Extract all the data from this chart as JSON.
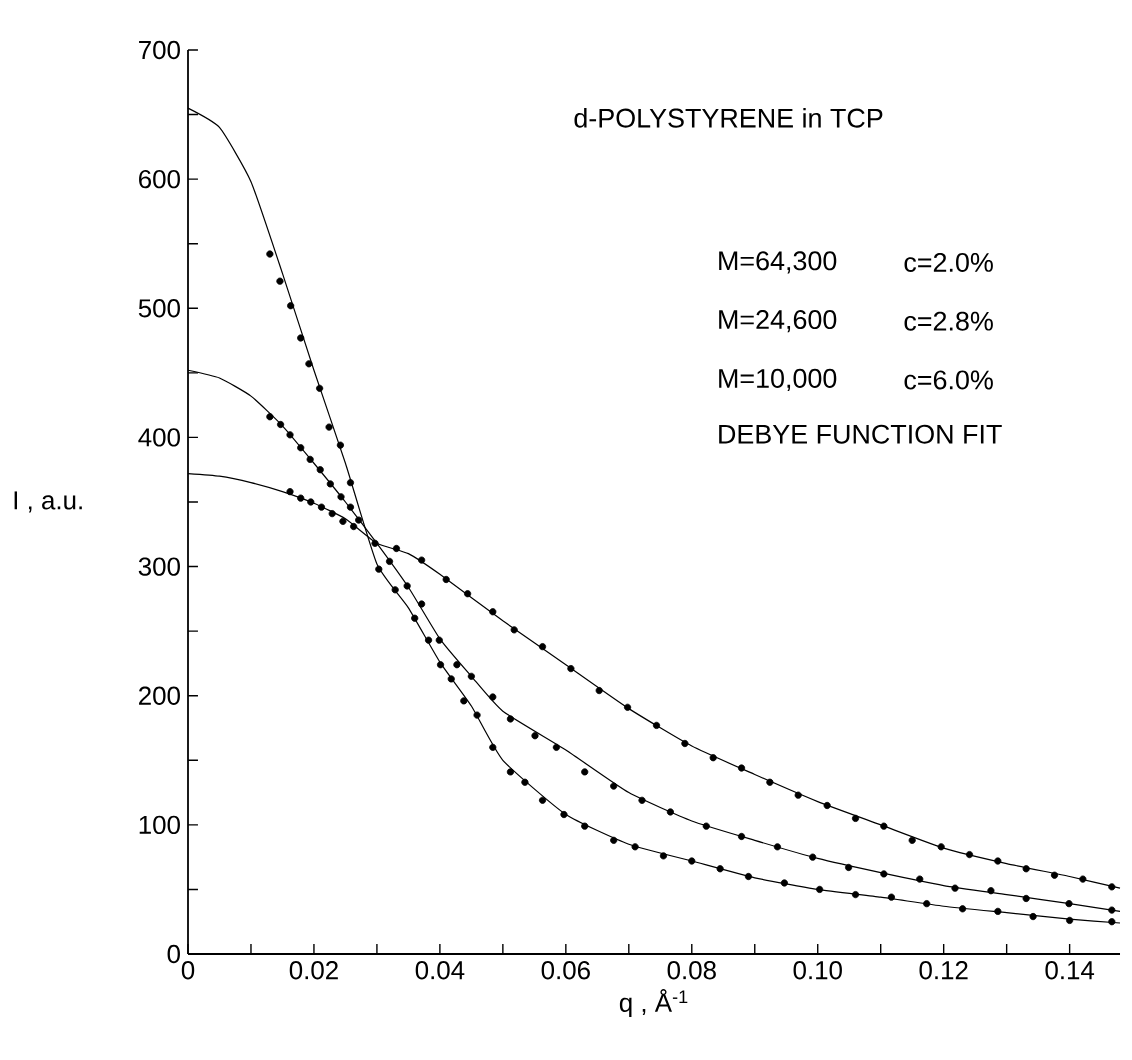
{
  "chart_data": {
    "type": "scatter",
    "title": "d-POLYSTYRENE in TCP",
    "xlabel": "q , Å$^{-1}$",
    "ylabel": "I , a.u.",
    "annotations": [
      "M=64,300",
      "c=2.0%",
      "M=24,600",
      "c=2.8%",
      "M=10,000",
      "c=6.0%",
      "DEBYE FUNCTION FIT"
    ],
    "xlim": [
      0,
      0.148
    ],
    "ylim": [
      0,
      700
    ],
    "xticks": [
      0,
      {
        "value": 0.01,
        "label": null
      },
      0.02,
      {
        "value": 0.03,
        "label": null
      },
      0.04,
      {
        "value": 0.05,
        "label": null
      },
      0.06,
      {
        "value": 0.07,
        "label": null
      },
      0.08,
      {
        "value": 0.09,
        "label": null
      },
      {
        "value": 0.1,
        "label": "0.10"
      },
      {
        "value": 0.11,
        "label": null
      },
      0.12,
      {
        "value": 0.13,
        "label": null
      },
      0.14
    ],
    "yticks": [
      0,
      {
        "value": 50,
        "label": null
      },
      100,
      {
        "value": 150,
        "label": null
      },
      200,
      {
        "value": 250,
        "label": null
      },
      300,
      {
        "value": 350,
        "label": null
      },
      400,
      {
        "value": 450,
        "label": null
      },
      500,
      {
        "value": 550,
        "label": null
      },
      600,
      {
        "value": 650,
        "label": null
      },
      700
    ],
    "marker": "circle",
    "series": [
      {
        "color": "#000000",
        "x": [
          0.013,
          0.0146,
          0.0163,
          0.0179,
          0.0192,
          0.0209,
          0.0224,
          0.0242,
          0.0258,
          0.0272,
          0.0303,
          0.0329,
          0.036,
          0.0382,
          0.0401,
          0.0418,
          0.0438,
          0.0459,
          0.0484,
          0.0512,
          0.0535,
          0.0563,
          0.0597,
          0.063,
          0.0676,
          0.071,
          0.0755,
          0.08,
          0.0845,
          0.089,
          0.0947,
          0.1003,
          0.106,
          0.1117,
          0.1173,
          0.123,
          0.1286,
          0.1342,
          0.14,
          0.1467
        ],
        "values": [
          542,
          521,
          502,
          477,
          457,
          438,
          408,
          394,
          365,
          null,
          298,
          282,
          260,
          243,
          224,
          213,
          196,
          185,
          160,
          141,
          133,
          119,
          108,
          99,
          88,
          83,
          76,
          72,
          66,
          60,
          55,
          50,
          46,
          44,
          39,
          35,
          33,
          29,
          26,
          25
        ]
      },
      {
        "color": "#000000",
        "x": [
          0.013,
          0.0147,
          0.0162,
          0.0179,
          0.0194,
          0.021,
          0.0226,
          0.0243,
          0.0258,
          0.0271,
          0.032,
          0.0348,
          0.0371,
          0.0399,
          0.0427,
          0.045,
          0.0484,
          0.0512,
          0.0551,
          0.0585,
          0.063,
          0.0676,
          0.0721,
          0.0766,
          0.0823,
          0.0879,
          0.0936,
          0.0992,
          0.1049,
          0.1105,
          0.1162,
          0.1218,
          0.1275,
          0.1331,
          0.1399,
          0.1467
        ],
        "values": [
          416,
          410,
          402,
          392,
          383,
          375,
          364,
          354,
          346,
          336,
          304,
          285,
          271,
          243,
          224,
          215,
          199,
          182,
          169,
          160,
          141,
          130,
          119,
          110,
          99,
          91,
          83,
          75,
          67,
          62,
          58,
          51,
          49,
          43,
          39,
          34
        ]
      },
      {
        "color": "#000000",
        "x": [
          0.0162,
          0.0179,
          0.0195,
          0.0212,
          0.0229,
          0.0246,
          0.0263,
          0.0297,
          0.0331,
          0.0371,
          0.041,
          0.0444,
          0.0484,
          0.0518,
          0.0563,
          0.0608,
          0.0653,
          0.0698,
          0.0744,
          0.0789,
          0.0834,
          0.0879,
          0.0924,
          0.0969,
          0.1015,
          0.106,
          0.1105,
          0.115,
          0.1196,
          0.1241,
          0.1286,
          0.1331,
          0.1376,
          0.1421,
          0.1467
        ],
        "values": [
          358,
          353,
          350,
          346,
          341,
          335,
          331,
          318,
          314,
          305,
          290,
          279,
          265,
          251,
          238,
          221,
          204,
          191,
          177,
          163,
          152,
          144,
          133,
          123,
          115,
          105,
          99,
          88,
          83,
          77,
          72,
          66,
          61,
          58,
          52
        ]
      },
      {
        "type": "line",
        "marker": "none",
        "color": "#000000",
        "x": [
          0,
          0.005,
          0.01,
          0.015,
          0.02,
          0.025,
          0.03,
          0.035,
          0.04,
          0.045,
          0.05,
          0.06,
          0.07,
          0.08,
          0.09,
          0.1,
          0.11,
          0.12,
          0.13,
          0.14,
          0.148
        ],
        "values": [
          655,
          640,
          598,
          527,
          452,
          380,
          302,
          268,
          226,
          192,
          150,
          108,
          85,
          72,
          59,
          50,
          44,
          37,
          32,
          27,
          24
        ]
      },
      {
        "type": "line",
        "marker": "none",
        "color": "#000000",
        "x": [
          0,
          0.005,
          0.01,
          0.015,
          0.02,
          0.025,
          0.03,
          0.035,
          0.04,
          0.045,
          0.05,
          0.06,
          0.07,
          0.08,
          0.09,
          0.1,
          0.11,
          0.12,
          0.13,
          0.14,
          0.148
        ],
        "values": [
          452,
          446,
          432,
          409,
          380,
          350,
          318,
          284,
          244,
          215,
          188,
          158,
          125,
          103,
          88,
          74,
          63,
          53,
          46,
          39,
          33
        ]
      },
      {
        "type": "line",
        "marker": "none",
        "color": "#000000",
        "x": [
          0,
          0.005,
          0.01,
          0.015,
          0.02,
          0.025,
          0.03,
          0.035,
          0.04,
          0.05,
          0.06,
          0.07,
          0.08,
          0.09,
          0.1,
          0.11,
          0.12,
          0.13,
          0.14,
          0.148
        ],
        "values": [
          372,
          370,
          365,
          358,
          349,
          337,
          318,
          310,
          294,
          258,
          224,
          190,
          161,
          139,
          118,
          100,
          82,
          70,
          60,
          51
        ]
      }
    ]
  }
}
